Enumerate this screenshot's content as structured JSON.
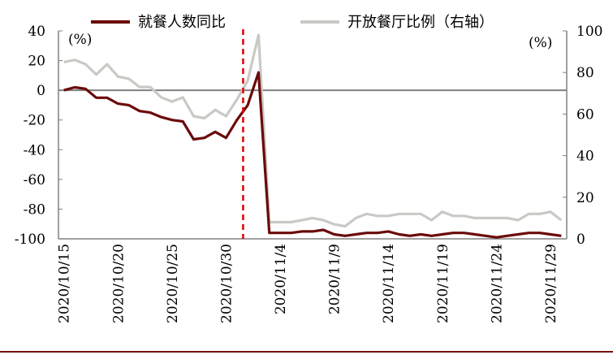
{
  "chart_data": {
    "type": "line",
    "title": "",
    "xlabel": "",
    "left_unit": "(%)",
    "right_unit": "(%)",
    "left_ylim": [
      -100,
      40
    ],
    "left_yticks": [
      40,
      20,
      0,
      -20,
      -40,
      -60,
      -80,
      -100
    ],
    "right_ylim": [
      0,
      100
    ],
    "right_yticks": [
      100,
      80,
      60,
      40,
      20,
      0
    ],
    "x": [
      "2020/10/15",
      "2020/10/16",
      "2020/10/17",
      "2020/10/18",
      "2020/10/19",
      "2020/10/20",
      "2020/10/21",
      "2020/10/22",
      "2020/10/23",
      "2020/10/24",
      "2020/10/25",
      "2020/10/26",
      "2020/10/27",
      "2020/10/28",
      "2020/10/29",
      "2020/10/30",
      "2020/10/31",
      "2020/11/1",
      "2020/11/2",
      "2020/11/3",
      "2020/11/4",
      "2020/11/5",
      "2020/11/6",
      "2020/11/7",
      "2020/11/8",
      "2020/11/9",
      "2020/11/10",
      "2020/11/11",
      "2020/11/12",
      "2020/11/13",
      "2020/11/14",
      "2020/11/15",
      "2020/11/16",
      "2020/11/17",
      "2020/11/18",
      "2020/11/19",
      "2020/11/20",
      "2020/11/21",
      "2020/11/22",
      "2020/11/23",
      "2020/11/24",
      "2020/11/25",
      "2020/11/26",
      "2020/11/27",
      "2020/11/28",
      "2020/11/29",
      "2020/11/30"
    ],
    "x_tick_labels": [
      "2020/10/15",
      "2020/10/20",
      "2020/10/25",
      "2020/10/30",
      "2020/11/4",
      "2020/11/9",
      "2020/11/14",
      "2020/11/19",
      "2020/11/24",
      "2020/11/29"
    ],
    "vertical_marker_x": "2020/11/1",
    "series": [
      {
        "name": "就餐人数同比",
        "axis": "left",
        "color": "#6b0a0a",
        "values": [
          0,
          2,
          1,
          -5,
          -5,
          -9,
          -10,
          -14,
          -15,
          -18,
          -20,
          -21,
          -33,
          -32,
          -28,
          -32,
          -20,
          -10,
          12,
          -96,
          -96,
          -96,
          -95,
          -95,
          -94,
          -97,
          -98,
          -97,
          -96,
          -96,
          -95,
          -97,
          -98,
          -97,
          -98,
          -97,
          -96,
          -96,
          -97,
          -98,
          -99,
          -98,
          -97,
          -96,
          -96,
          -97,
          -98
        ]
      },
      {
        "name": "开放餐厅比例（右轴）",
        "axis": "right",
        "color": "#c9c9c5",
        "values": [
          85,
          86,
          84,
          79,
          84,
          78,
          77,
          73,
          73,
          68,
          66,
          68,
          59,
          58,
          62,
          59,
          67,
          76,
          98,
          8,
          8,
          8,
          9,
          10,
          9,
          7,
          6,
          10,
          12,
          11,
          11,
          12,
          12,
          12,
          9,
          13,
          11,
          11,
          10,
          10,
          10,
          10,
          9,
          12,
          12,
          13,
          9
        ]
      }
    ]
  }
}
